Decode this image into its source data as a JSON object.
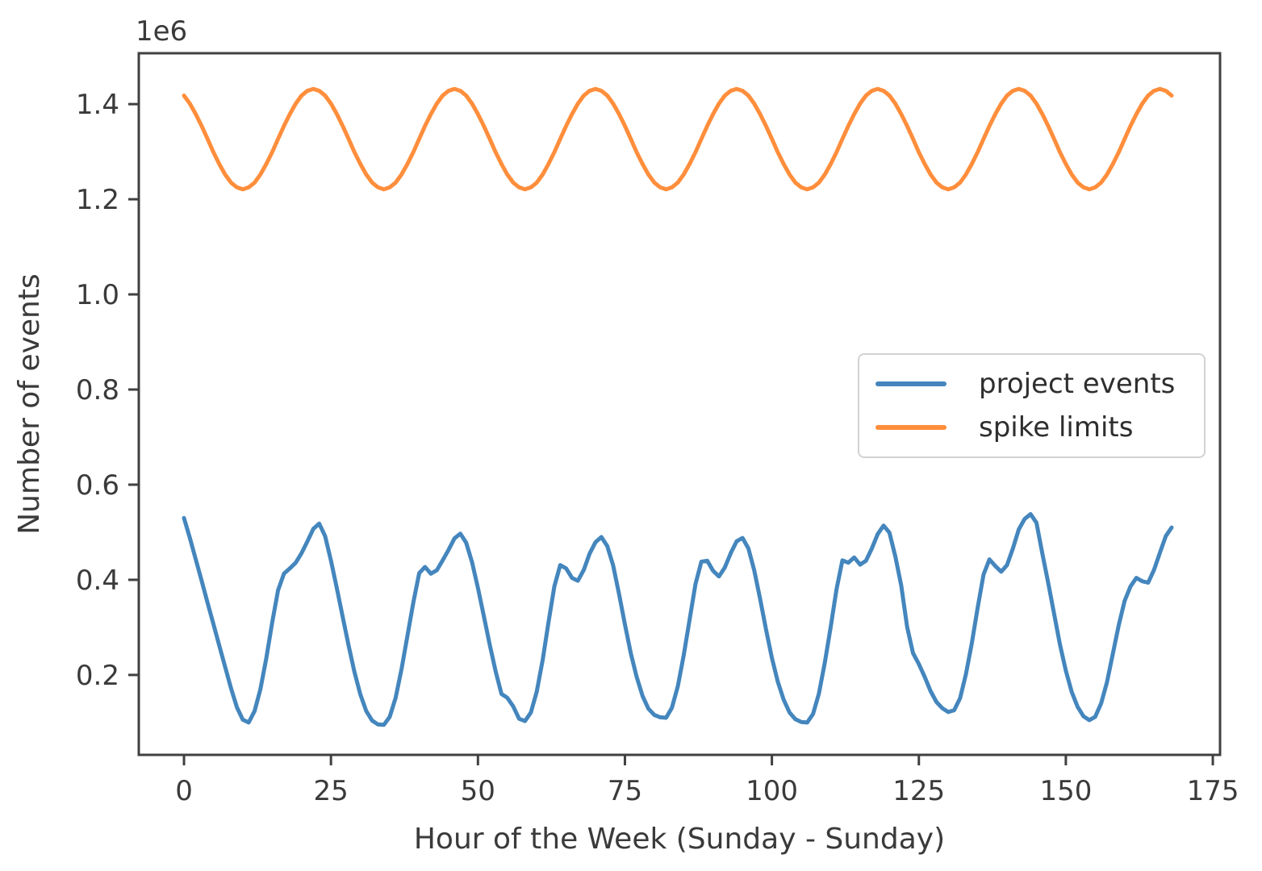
{
  "figure": {
    "background_color": "#ffffff",
    "axis_color": "#404040",
    "text_color": "#3a3a3a"
  },
  "chart_data": {
    "type": "line",
    "title": "",
    "xlabel": "Hour of the Week (Sunday - Sunday)",
    "ylabel": "Number of events",
    "y_offset_label": "1e6",
    "values_unit": "1e6 events",
    "x_start": 0,
    "x_step": 1,
    "x_end": 168,
    "xlim": [
      -7.69,
      176.23
    ],
    "ylim": [
      0.032,
      1.507
    ],
    "x_ticks": [
      0,
      25,
      50,
      75,
      100,
      125,
      150,
      175
    ],
    "y_ticks": [
      0.2,
      0.4,
      0.6,
      0.8,
      1.0,
      1.2,
      1.4
    ],
    "grid": false,
    "legend_position": "center right",
    "series": [
      {
        "name": "project events",
        "color": "#4486bd",
        "line_width": 5,
        "values": [
          0.53,
          0.488,
          0.443,
          0.398,
          0.352,
          0.307,
          0.262,
          0.217,
          0.172,
          0.132,
          0.106,
          0.1,
          0.124,
          0.17,
          0.235,
          0.31,
          0.378,
          0.413,
          0.424,
          0.436,
          0.456,
          0.481,
          0.507,
          0.518,
          0.492,
          0.44,
          0.382,
          0.322,
          0.262,
          0.206,
          0.159,
          0.124,
          0.104,
          0.096,
          0.095,
          0.112,
          0.152,
          0.212,
          0.282,
          0.352,
          0.414,
          0.427,
          0.413,
          0.42,
          0.441,
          0.463,
          0.487,
          0.497,
          0.478,
          0.437,
          0.383,
          0.324,
          0.264,
          0.208,
          0.16,
          0.152,
          0.134,
          0.108,
          0.103,
          0.121,
          0.165,
          0.231,
          0.31,
          0.386,
          0.431,
          0.424,
          0.404,
          0.398,
          0.421,
          0.455,
          0.479,
          0.49,
          0.471,
          0.43,
          0.37,
          0.306,
          0.246,
          0.196,
          0.156,
          0.129,
          0.116,
          0.111,
          0.11,
          0.131,
          0.176,
          0.241,
          0.316,
          0.391,
          0.438,
          0.44,
          0.419,
          0.407,
          0.426,
          0.456,
          0.481,
          0.488,
          0.466,
          0.42,
          0.36,
          0.296,
          0.236,
          0.186,
          0.148,
          0.121,
          0.107,
          0.101,
          0.1,
          0.118,
          0.161,
          0.226,
          0.301,
          0.38,
          0.441,
          0.436,
          0.447,
          0.432,
          0.44,
          0.466,
          0.496,
          0.514,
          0.499,
          0.449,
          0.388,
          0.301,
          0.246,
          0.223,
          0.196,
          0.166,
          0.143,
          0.13,
          0.122,
          0.126,
          0.151,
          0.201,
          0.266,
          0.341,
          0.411,
          0.443,
          0.429,
          0.417,
          0.431,
          0.466,
          0.506,
          0.528,
          0.538,
          0.52,
          0.455,
          0.394,
          0.329,
          0.264,
          0.209,
          0.164,
          0.133,
          0.113,
          0.105,
          0.112,
          0.14,
          0.185,
          0.245,
          0.305,
          0.356,
          0.386,
          0.404,
          0.397,
          0.394,
          0.421,
          0.457,
          0.492,
          0.51
        ]
      },
      {
        "name": "spike limits",
        "color": "#ff8e3c",
        "line_width": 5,
        "values": [
          1.418,
          1.401,
          1.379,
          1.354,
          1.327,
          1.299,
          1.274,
          1.252,
          1.235,
          1.225,
          1.221,
          1.225,
          1.235,
          1.252,
          1.274,
          1.299,
          1.327,
          1.354,
          1.379,
          1.401,
          1.418,
          1.428,
          1.432,
          1.428,
          1.418,
          1.401,
          1.379,
          1.354,
          1.327,
          1.299,
          1.274,
          1.252,
          1.235,
          1.225,
          1.221,
          1.225,
          1.235,
          1.252,
          1.274,
          1.299,
          1.327,
          1.354,
          1.379,
          1.401,
          1.418,
          1.428,
          1.432,
          1.428,
          1.418,
          1.401,
          1.379,
          1.354,
          1.327,
          1.299,
          1.274,
          1.252,
          1.235,
          1.225,
          1.221,
          1.225,
          1.235,
          1.252,
          1.274,
          1.299,
          1.327,
          1.354,
          1.379,
          1.401,
          1.418,
          1.428,
          1.432,
          1.428,
          1.418,
          1.401,
          1.379,
          1.354,
          1.327,
          1.299,
          1.274,
          1.252,
          1.235,
          1.225,
          1.221,
          1.225,
          1.235,
          1.252,
          1.274,
          1.299,
          1.327,
          1.354,
          1.379,
          1.401,
          1.418,
          1.428,
          1.432,
          1.428,
          1.418,
          1.401,
          1.379,
          1.354,
          1.327,
          1.299,
          1.274,
          1.252,
          1.235,
          1.225,
          1.221,
          1.225,
          1.235,
          1.252,
          1.274,
          1.299,
          1.327,
          1.354,
          1.379,
          1.401,
          1.418,
          1.428,
          1.432,
          1.428,
          1.418,
          1.401,
          1.379,
          1.354,
          1.327,
          1.299,
          1.274,
          1.252,
          1.235,
          1.225,
          1.221,
          1.225,
          1.235,
          1.252,
          1.274,
          1.299,
          1.327,
          1.354,
          1.379,
          1.401,
          1.418,
          1.428,
          1.432,
          1.428,
          1.418,
          1.401,
          1.379,
          1.354,
          1.327,
          1.299,
          1.274,
          1.252,
          1.235,
          1.225,
          1.221,
          1.225,
          1.235,
          1.252,
          1.274,
          1.299,
          1.327,
          1.354,
          1.379,
          1.401,
          1.418,
          1.428,
          1.432,
          1.428,
          1.418
        ]
      }
    ]
  },
  "legend": {
    "items": [
      {
        "label": "project events",
        "color": "#4486bd"
      },
      {
        "label": "spike limits",
        "color": "#ff8e3c"
      }
    ]
  }
}
